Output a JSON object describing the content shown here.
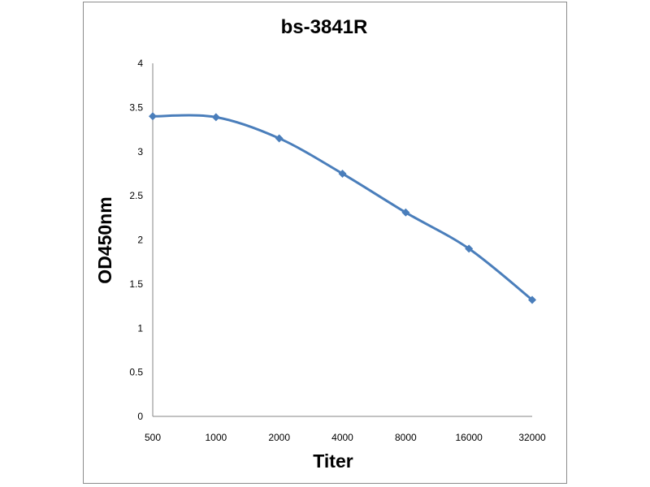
{
  "chart_data": {
    "type": "line",
    "title": "bs-3841R",
    "xlabel": "Titer",
    "ylabel": "OD450nm",
    "categories": [
      "500",
      "1000",
      "2000",
      "4000",
      "8000",
      "16000",
      "32000"
    ],
    "series": [
      {
        "values": [
          3.4,
          3.39,
          3.15,
          2.75,
          2.31,
          1.9,
          1.32
        ],
        "color": "#4a7ebb",
        "marker": "diamond"
      }
    ],
    "ylim": [
      0,
      4
    ],
    "yticks": [
      "0",
      "0.5",
      "1",
      "1.5",
      "2",
      "2.5",
      "3",
      "3.5",
      "4"
    ],
    "grid": false,
    "legend": "none",
    "smooth": true
  }
}
